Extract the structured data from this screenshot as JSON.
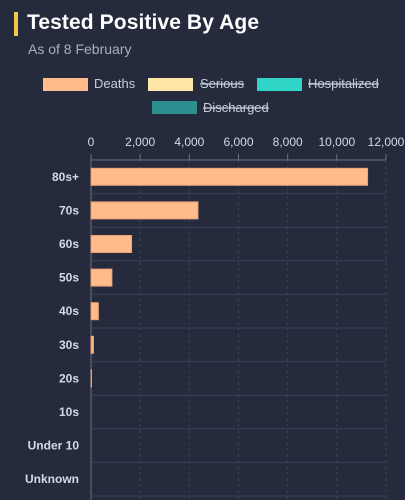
{
  "header": {
    "title": "Tested Positive By Age",
    "subtitle": "As of 8 February",
    "accent_color": "#f2c94c"
  },
  "chart_data": {
    "type": "bar",
    "orientation": "horizontal",
    "title": "Tested Positive By Age",
    "subtitle": "As of 8 February",
    "categories": [
      "80s+",
      "70s",
      "60s",
      "50s",
      "40s",
      "30s",
      "20s",
      "10s",
      "Under 10",
      "Unknown"
    ],
    "series": [
      {
        "name": "Deaths",
        "color": "#ffbb8a",
        "visible": true,
        "values": [
          11250,
          4350,
          1650,
          850,
          300,
          100,
          20,
          0,
          0,
          0
        ]
      },
      {
        "name": "Serious",
        "color": "#ffe8a6",
        "visible": false,
        "values": null
      },
      {
        "name": "Hospitalized",
        "color": "#30d5c8",
        "visible": false,
        "values": null
      },
      {
        "name": "Discharged",
        "color": "#2b8f8f",
        "visible": false,
        "values": null
      }
    ],
    "x_ticks": [
      "0",
      "2,000",
      "4,000",
      "6,000",
      "8,000",
      "10,000",
      "12,000"
    ],
    "xlim": [
      0,
      12000
    ],
    "axis_position": "top",
    "grid": true,
    "legend_placement": "top"
  }
}
